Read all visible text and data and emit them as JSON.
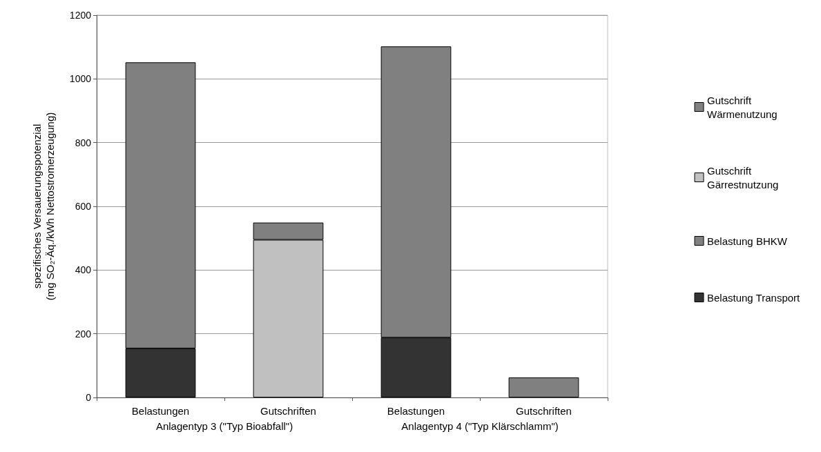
{
  "chart_data": {
    "type": "bar",
    "stacked": true,
    "ylabel": "spezifisches Versauerungspotenzial\n(mg SO₂-Äq./kWh Nettostromerzeugung)",
    "categories": [
      "Belastungen",
      "Gutschriften",
      "Belastungen",
      "Gutschriften"
    ],
    "series": [
      {
        "name": "Belastung Transport",
        "color": "#333333",
        "values": [
          154,
          null,
          188,
          null
        ]
      },
      {
        "name": "Belastung BHKW",
        "color": "#808080",
        "values": [
          898,
          null,
          914,
          null
        ]
      },
      {
        "name": "Gutschrift Gärrestnutzung",
        "color": "#c0c0c0",
        "values": [
          null,
          495,
          null,
          null
        ]
      },
      {
        "name": "Gutschrift Wärmenutzung",
        "color": "#808080",
        "values": [
          null,
          54,
          null,
          63
        ]
      }
    ],
    "ylim": [
      0,
      1200
    ],
    "yticks": [
      0,
      200,
      400,
      600,
      800,
      1000,
      1200
    ],
    "grid": "y",
    "legend": "right",
    "annotations": [
      "Anlagentyp 3 (\"Typ Bioabfall\")",
      "Anlagentyp 4 (\"Typ Klärschlamm\")"
    ]
  }
}
